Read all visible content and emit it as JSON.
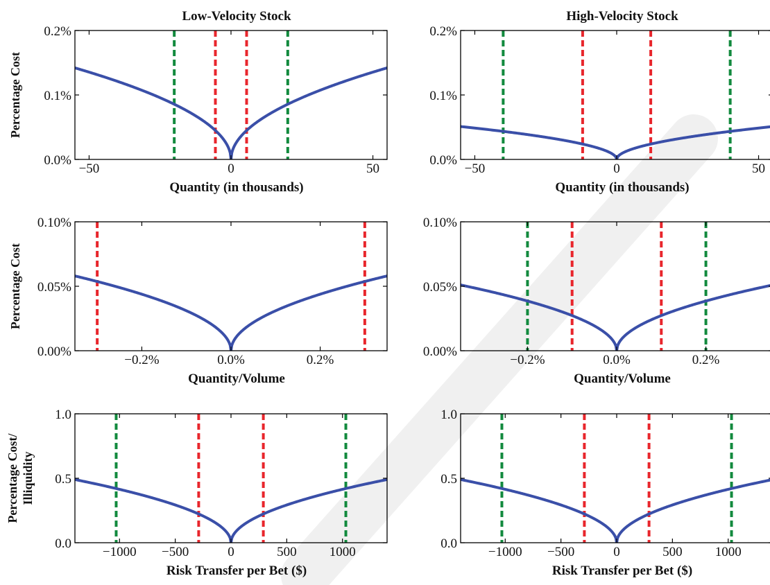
{
  "colors": {
    "curve": "#3a4fa8",
    "inner_markers": "#e8262c",
    "outer_markers": "#128a3e",
    "axes": "#000000",
    "watermark": "#ececec"
  },
  "chart_data": [
    {
      "id": "p11",
      "type": "line",
      "row": 0,
      "col": 0,
      "title": "Low-Velocity Stock",
      "xlabel": "Quantity (in thousands)",
      "ylabel": "Percentage Cost",
      "xlim": [
        -55,
        55
      ],
      "ylim": [
        0.0,
        0.2
      ],
      "xticks": [
        -50,
        0,
        50
      ],
      "xticklabels": [
        "−50",
        "0",
        "50"
      ],
      "yticks": [
        0.0,
        0.1,
        0.2
      ],
      "yticklabels": [
        "0.0%",
        "0.1%",
        "0.2%"
      ],
      "curve": {
        "shape": "sqrt",
        "amplitude_at_xmax": 0.142,
        "offset": 0.0
      },
      "markers": [
        {
          "x": -20,
          "color": "outer"
        },
        {
          "x": -5.5,
          "color": "inner"
        },
        {
          "x": 5.5,
          "color": "inner"
        },
        {
          "x": 20,
          "color": "outer"
        }
      ]
    },
    {
      "id": "p12",
      "type": "line",
      "row": 0,
      "col": 1,
      "title": "High-Velocity Stock",
      "xlabel": "Quantity (in thousands)",
      "ylabel": "",
      "xlim": [
        -55,
        55
      ],
      "ylim": [
        0.0,
        0.2
      ],
      "xticks": [
        -50,
        0,
        50
      ],
      "xticklabels": [
        "−50",
        "0",
        "50"
      ],
      "yticks": [
        0.0,
        0.1,
        0.2
      ],
      "yticklabels": [
        "0.0%",
        "0.1%",
        "0.2%"
      ],
      "curve": {
        "shape": "sqrt",
        "amplitude_at_xmax": 0.051,
        "offset": 0.0
      },
      "markers": [
        {
          "x": -40,
          "color": "outer"
        },
        {
          "x": -12,
          "color": "inner"
        },
        {
          "x": 12,
          "color": "inner"
        },
        {
          "x": 40,
          "color": "outer"
        }
      ]
    },
    {
      "id": "p21",
      "type": "line",
      "row": 1,
      "col": 0,
      "title": "",
      "xlabel": "Quantity/Volume",
      "ylabel": "Percentage Cost",
      "xlim": [
        -0.35,
        0.35
      ],
      "ylim": [
        0.0,
        0.1
      ],
      "xticks": [
        -0.2,
        0.0,
        0.2
      ],
      "xticklabels": [
        "−0.2%",
        "0.0%",
        "0.2%"
      ],
      "yticks": [
        0.0,
        0.05,
        0.1
      ],
      "yticklabels": [
        "0.00%",
        "0.05%",
        "0.10%"
      ],
      "curve": {
        "shape": "sqrt",
        "amplitude_at_xmax": 0.058,
        "offset": 0.0
      },
      "markers": [
        {
          "x": -0.3,
          "color": "inner"
        },
        {
          "x": 0.3,
          "color": "inner"
        }
      ]
    },
    {
      "id": "p22",
      "type": "line",
      "row": 1,
      "col": 1,
      "title": "",
      "xlabel": "Quantity/Volume",
      "ylabel": "",
      "xlim": [
        -0.35,
        0.35
      ],
      "ylim": [
        0.0,
        0.1
      ],
      "xticks": [
        -0.2,
        0.0,
        0.2
      ],
      "xticklabels": [
        "−0.2%",
        "0.0%",
        "0.2%"
      ],
      "yticks": [
        0.0,
        0.05,
        0.1
      ],
      "yticklabels": [
        "0.00%",
        "0.05%",
        "0.10%"
      ],
      "curve": {
        "shape": "sqrt",
        "amplitude_at_xmax": 0.051,
        "offset": 0.0
      },
      "markers": [
        {
          "x": -0.2,
          "color": "outer"
        },
        {
          "x": -0.1,
          "color": "inner"
        },
        {
          "x": 0.1,
          "color": "inner"
        },
        {
          "x": 0.2,
          "color": "outer"
        }
      ]
    },
    {
      "id": "p31",
      "type": "line",
      "row": 2,
      "col": 0,
      "title": "",
      "xlabel": "Risk Transfer per Bet ($)",
      "ylabel": "Percentage Cost/ Illiquidity",
      "ylabel_lines": [
        "Percentage Cost/",
        "Illiquidity"
      ],
      "xlim": [
        -1400,
        1400
      ],
      "ylim": [
        0.0,
        1.0
      ],
      "xticks": [
        -1000,
        -500,
        0,
        500,
        1000
      ],
      "xticklabels": [
        "−1000",
        "−500",
        "0",
        "500",
        "1000"
      ],
      "yticks": [
        0.0,
        0.5,
        1.0
      ],
      "yticklabels": [
        "0.0",
        "0.5",
        "1.0"
      ],
      "curve": {
        "shape": "sqrt",
        "amplitude_at_xmax": 0.49,
        "offset": 0.0
      },
      "markers": [
        {
          "x": -1030,
          "color": "outer"
        },
        {
          "x": -290,
          "color": "inner"
        },
        {
          "x": 290,
          "color": "inner"
        },
        {
          "x": 1030,
          "color": "outer"
        }
      ]
    },
    {
      "id": "p32",
      "type": "line",
      "row": 2,
      "col": 1,
      "title": "",
      "xlabel": "Risk Transfer per Bet ($)",
      "ylabel": "",
      "xlim": [
        -1400,
        1400
      ],
      "ylim": [
        0.0,
        1.0
      ],
      "xticks": [
        -1000,
        -500,
        0,
        500,
        1000
      ],
      "xticklabels": [
        "−1000",
        "−500",
        "0",
        "500",
        "1000"
      ],
      "yticks": [
        0.0,
        0.5,
        1.0
      ],
      "yticklabels": [
        "0.0",
        "0.5",
        "1.0"
      ],
      "curve": {
        "shape": "sqrt",
        "amplitude_at_xmax": 0.49,
        "offset": 0.0
      },
      "markers": [
        {
          "x": -1030,
          "color": "outer"
        },
        {
          "x": -290,
          "color": "inner"
        },
        {
          "x": 290,
          "color": "inner"
        },
        {
          "x": 1030,
          "color": "outer"
        }
      ]
    }
  ]
}
